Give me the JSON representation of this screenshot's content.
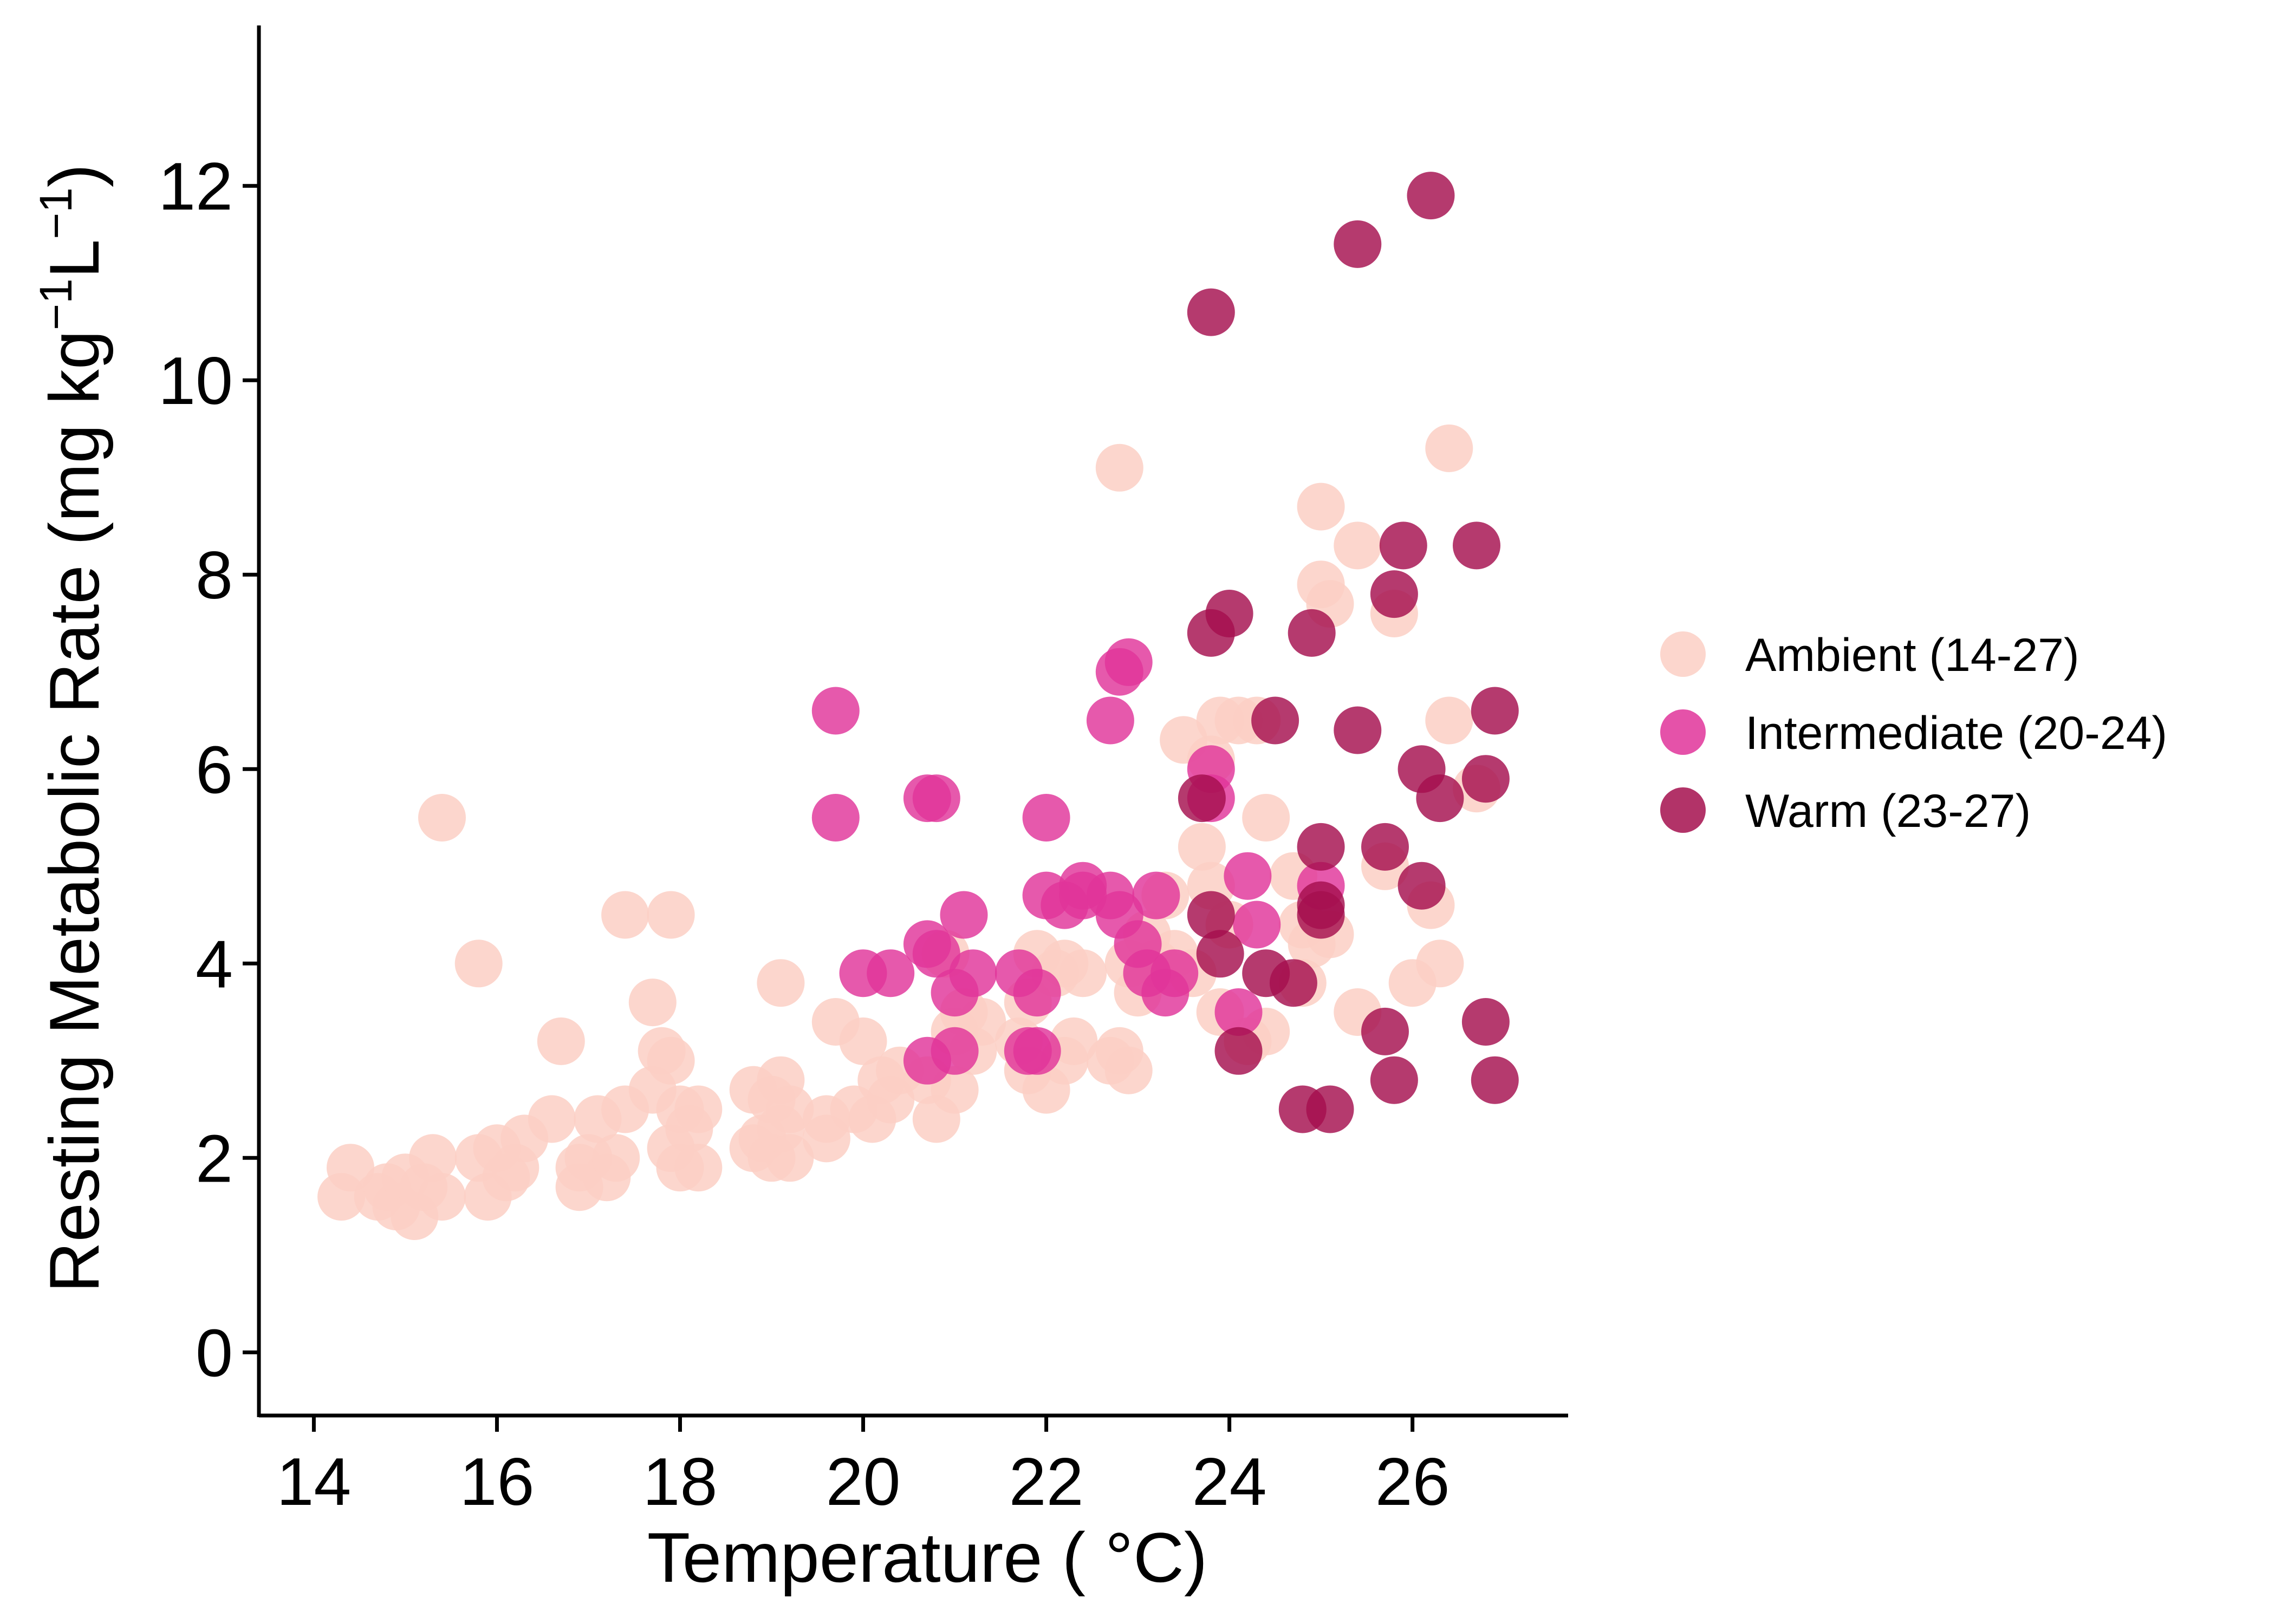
{
  "chart_data": {
    "type": "scatter",
    "xlabel": "Temperature ( °C)",
    "ylabel_parts": [
      "Resting Metabolic Rate (mg kg",
      "−1",
      "L",
      "−1",
      ")"
    ],
    "xlim": [
      13.4,
      27.7
    ],
    "ylim": [
      -0.65,
      13.65
    ],
    "x_ticks": [
      14,
      16,
      18,
      20,
      22,
      24,
      26
    ],
    "y_ticks": [
      0,
      2,
      4,
      6,
      8,
      10,
      12
    ],
    "grid": false,
    "legend_position": "right",
    "series": [
      {
        "name": "Ambient (14-27)",
        "color": "#FCCFC4",
        "points": [
          [
            14.3,
            1.6
          ],
          [
            14.4,
            1.9
          ],
          [
            14.7,
            1.6
          ],
          [
            14.8,
            1.7
          ],
          [
            14.9,
            1.5
          ],
          [
            15.0,
            1.8
          ],
          [
            15.1,
            1.4
          ],
          [
            15.2,
            1.7
          ],
          [
            15.3,
            2.0
          ],
          [
            15.4,
            1.6
          ],
          [
            15.4,
            5.5
          ],
          [
            15.8,
            2.0
          ],
          [
            15.8,
            4.0
          ],
          [
            15.9,
            1.6
          ],
          [
            16.0,
            2.1
          ],
          [
            16.1,
            1.8
          ],
          [
            16.2,
            1.9
          ],
          [
            16.3,
            2.2
          ],
          [
            16.6,
            2.4
          ],
          [
            16.7,
            3.2
          ],
          [
            16.9,
            1.9
          ],
          [
            16.9,
            1.7
          ],
          [
            17.0,
            2.0
          ],
          [
            17.1,
            2.4
          ],
          [
            17.2,
            1.8
          ],
          [
            17.3,
            2.0
          ],
          [
            17.4,
            2.5
          ],
          [
            17.4,
            4.5
          ],
          [
            17.7,
            2.7
          ],
          [
            17.7,
            3.6
          ],
          [
            17.8,
            3.1
          ],
          [
            17.9,
            3.0
          ],
          [
            17.9,
            4.5
          ],
          [
            17.9,
            2.1
          ],
          [
            18.0,
            1.9
          ],
          [
            18.0,
            2.5
          ],
          [
            18.1,
            2.3
          ],
          [
            18.2,
            1.9
          ],
          [
            18.2,
            2.5
          ],
          [
            18.8,
            2.1
          ],
          [
            18.8,
            2.7
          ],
          [
            18.9,
            2.2
          ],
          [
            19.0,
            2.6
          ],
          [
            19.0,
            2.0
          ],
          [
            19.1,
            2.8
          ],
          [
            19.1,
            2.3
          ],
          [
            19.1,
            3.8
          ],
          [
            19.2,
            2.5
          ],
          [
            19.2,
            2.0
          ],
          [
            19.6,
            2.2
          ],
          [
            19.6,
            2.4
          ],
          [
            19.7,
            3.4
          ],
          [
            19.9,
            2.5
          ],
          [
            20.0,
            3.2
          ],
          [
            20.1,
            2.4
          ],
          [
            20.2,
            2.8
          ],
          [
            20.3,
            2.6
          ],
          [
            20.4,
            2.9
          ],
          [
            20.7,
            2.8
          ],
          [
            20.8,
            2.4
          ],
          [
            20.9,
            4.1
          ],
          [
            21.0,
            3.3
          ],
          [
            21.0,
            2.7
          ],
          [
            21.1,
            3.5
          ],
          [
            21.2,
            3.1
          ],
          [
            21.3,
            3.4
          ],
          [
            21.7,
            3.2
          ],
          [
            21.8,
            2.9
          ],
          [
            21.8,
            3.6
          ],
          [
            21.9,
            4.1
          ],
          [
            22.0,
            2.7
          ],
          [
            22.1,
            3.9
          ],
          [
            22.2,
            3.0
          ],
          [
            22.2,
            4.0
          ],
          [
            22.3,
            3.2
          ],
          [
            22.4,
            3.9
          ],
          [
            22.7,
            3.0
          ],
          [
            22.8,
            3.1
          ],
          [
            22.8,
            9.1
          ],
          [
            22.9,
            2.9
          ],
          [
            22.9,
            4.0
          ],
          [
            23.0,
            3.7
          ],
          [
            23.1,
            4.3
          ],
          [
            23.2,
            4.0
          ],
          [
            23.3,
            4.7
          ],
          [
            23.4,
            4.1
          ],
          [
            23.5,
            6.3
          ],
          [
            23.6,
            3.9
          ],
          [
            23.7,
            5.2
          ],
          [
            23.8,
            4.8
          ],
          [
            23.8,
            6.1
          ],
          [
            23.9,
            6.5
          ],
          [
            23.9,
            3.5
          ],
          [
            24.0,
            4.4
          ],
          [
            24.1,
            6.5
          ],
          [
            24.2,
            3.2
          ],
          [
            24.3,
            6.5
          ],
          [
            24.4,
            5.5
          ],
          [
            24.4,
            3.3
          ],
          [
            24.7,
            4.9
          ],
          [
            24.8,
            4.4
          ],
          [
            24.8,
            3.8
          ],
          [
            24.9,
            4.2
          ],
          [
            25.0,
            8.7
          ],
          [
            25.0,
            7.9
          ],
          [
            25.1,
            7.7
          ],
          [
            25.1,
            4.3
          ],
          [
            25.4,
            8.3
          ],
          [
            25.4,
            3.5
          ],
          [
            25.7,
            5.0
          ],
          [
            25.8,
            7.6
          ],
          [
            26.0,
            3.8
          ],
          [
            26.2,
            4.6
          ],
          [
            26.3,
            4.0
          ],
          [
            26.4,
            9.3
          ],
          [
            26.4,
            6.5
          ],
          [
            26.7,
            5.8
          ]
        ]
      },
      {
        "name": "Intermediate (20-24)",
        "color": "#E0349A",
        "points": [
          [
            19.7,
            6.6
          ],
          [
            19.7,
            5.5
          ],
          [
            20.0,
            3.9
          ],
          [
            20.3,
            3.9
          ],
          [
            20.7,
            4.2
          ],
          [
            20.7,
            5.7
          ],
          [
            20.8,
            5.7
          ],
          [
            20.7,
            3.0
          ],
          [
            20.8,
            4.1
          ],
          [
            21.0,
            3.1
          ],
          [
            21.0,
            3.7
          ],
          [
            21.1,
            4.5
          ],
          [
            21.2,
            3.9
          ],
          [
            21.7,
            3.9
          ],
          [
            21.8,
            3.1
          ],
          [
            21.9,
            3.7
          ],
          [
            21.9,
            3.1
          ],
          [
            22.0,
            5.5
          ],
          [
            22.0,
            4.7
          ],
          [
            22.2,
            4.6
          ],
          [
            22.4,
            4.8
          ],
          [
            22.4,
            4.7
          ],
          [
            22.7,
            4.7
          ],
          [
            22.7,
            6.5
          ],
          [
            22.8,
            4.5
          ],
          [
            22.8,
            7.0
          ],
          [
            22.9,
            7.1
          ],
          [
            23.0,
            4.2
          ],
          [
            23.1,
            3.9
          ],
          [
            23.2,
            4.7
          ],
          [
            23.3,
            3.7
          ],
          [
            23.4,
            3.9
          ],
          [
            23.8,
            6.0
          ],
          [
            23.8,
            5.7
          ],
          [
            24.1,
            3.5
          ],
          [
            24.2,
            4.9
          ],
          [
            24.3,
            4.4
          ],
          [
            25.0,
            4.8
          ]
        ]
      },
      {
        "name": "Warm (23-27)",
        "color": "#A50F4E",
        "points": [
          [
            23.7,
            5.7
          ],
          [
            23.8,
            7.4
          ],
          [
            23.8,
            4.5
          ],
          [
            23.8,
            10.7
          ],
          [
            23.9,
            4.1
          ],
          [
            24.0,
            7.6
          ],
          [
            24.1,
            3.1
          ],
          [
            24.4,
            3.9
          ],
          [
            24.5,
            6.5
          ],
          [
            24.7,
            3.8
          ],
          [
            24.8,
            2.5
          ],
          [
            24.9,
            7.4
          ],
          [
            25.0,
            4.5
          ],
          [
            25.0,
            4.6
          ],
          [
            25.0,
            5.2
          ],
          [
            25.1,
            2.5
          ],
          [
            25.4,
            11.4
          ],
          [
            25.4,
            6.4
          ],
          [
            25.7,
            3.3
          ],
          [
            25.7,
            5.2
          ],
          [
            25.8,
            2.8
          ],
          [
            25.8,
            7.8
          ],
          [
            25.9,
            8.3
          ],
          [
            26.1,
            4.8
          ],
          [
            26.1,
            6.0
          ],
          [
            26.2,
            11.9
          ],
          [
            26.3,
            5.7
          ],
          [
            26.7,
            8.3
          ],
          [
            26.8,
            3.4
          ],
          [
            26.8,
            5.9
          ],
          [
            26.9,
            2.8
          ],
          [
            26.9,
            6.6
          ]
        ]
      }
    ]
  }
}
